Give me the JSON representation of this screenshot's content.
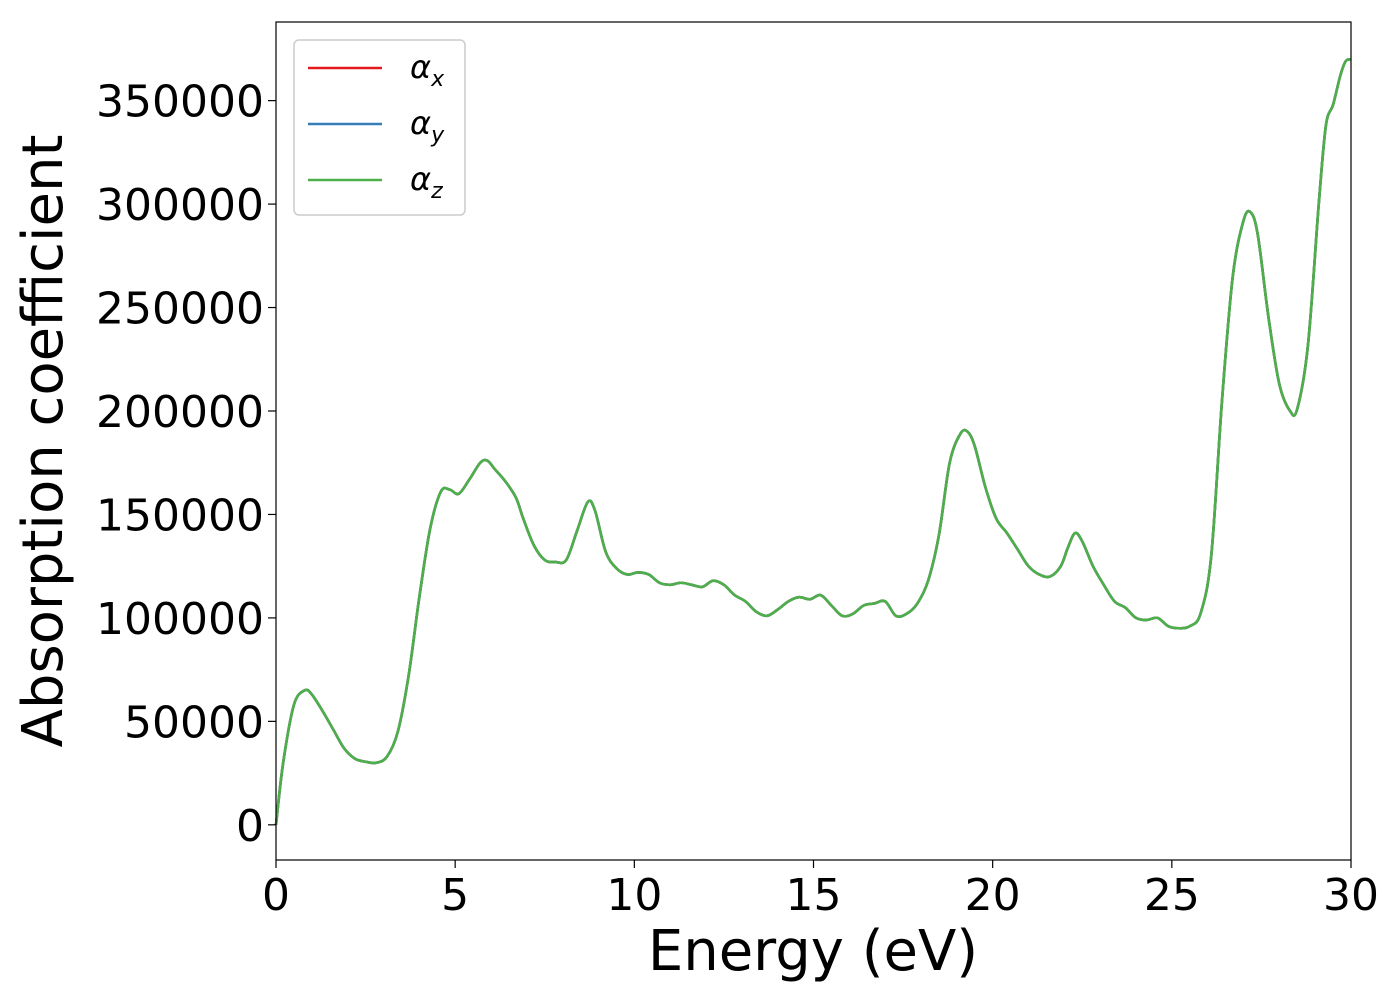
{
  "chart_data": {
    "type": "line",
    "xlabel": "Energy (eV)",
    "ylabel": "Absorption coefficient",
    "xlim": [
      0,
      30
    ],
    "ylim": [
      -17000,
      388000
    ],
    "xticks": [
      0,
      5,
      10,
      15,
      20,
      25,
      30
    ],
    "yticks": [
      0,
      50000,
      100000,
      150000,
      200000,
      250000,
      300000,
      350000
    ],
    "grid": false,
    "legend_position": "top-left",
    "x": [
      0,
      0.2,
      0.5,
      0.8,
      1.0,
      1.3,
      1.6,
      1.9,
      2.2,
      2.5,
      2.8,
      3.1,
      3.4,
      3.7,
      4.0,
      4.3,
      4.6,
      4.85,
      5.1,
      5.4,
      5.7,
      5.9,
      6.1,
      6.4,
      6.7,
      6.9,
      7.2,
      7.5,
      7.8,
      8.1,
      8.4,
      8.7,
      8.9,
      9.2,
      9.5,
      9.8,
      10.1,
      10.4,
      10.7,
      11.0,
      11.3,
      11.6,
      11.9,
      12.2,
      12.5,
      12.8,
      13.1,
      13.4,
      13.7,
      14.0,
      14.3,
      14.6,
      14.9,
      15.2,
      15.5,
      15.8,
      16.1,
      16.4,
      16.7,
      17.0,
      17.3,
      17.6,
      17.9,
      18.2,
      18.5,
      18.8,
      19.1,
      19.3,
      19.5,
      19.8,
      20.1,
      20.4,
      20.7,
      21.0,
      21.3,
      21.6,
      21.9,
      22.1,
      22.3,
      22.5,
      22.8,
      23.1,
      23.4,
      23.7,
      24.0,
      24.3,
      24.6,
      24.9,
      25.2,
      25.5,
      25.8,
      26.1,
      26.4,
      26.7,
      27.0,
      27.2,
      27.4,
      27.7,
      28.0,
      28.3,
      28.5,
      28.8,
      29.1,
      29.3,
      29.5,
      29.7,
      29.85,
      30.0
    ],
    "series": [
      {
        "name": "α_x",
        "symbol": "α",
        "subscript": "x",
        "color": "#e41a1c",
        "values": [
          0,
          30000,
          58000,
          65000,
          63000,
          55000,
          46000,
          37000,
          32000,
          30500,
          30000,
          33000,
          45000,
          72000,
          110000,
          143000,
          161000,
          162000,
          160000,
          167000,
          175000,
          176000,
          172000,
          166000,
          158000,
          148000,
          135000,
          128000,
          127000,
          128000,
          142000,
          156000,
          152000,
          132000,
          124000,
          121000,
          122000,
          121000,
          117000,
          116000,
          117000,
          116000,
          115000,
          118000,
          116000,
          111000,
          108000,
          103000,
          101000,
          104000,
          108000,
          110000,
          109000,
          111000,
          106000,
          101000,
          102000,
          106000,
          107000,
          108000,
          101000,
          102000,
          107000,
          118000,
          140000,
          175000,
          189000,
          190000,
          183000,
          163000,
          148000,
          141000,
          133000,
          125000,
          121000,
          120000,
          125000,
          134000,
          141000,
          137000,
          125000,
          116000,
          108000,
          105000,
          100000,
          99000,
          100000,
          96000,
          95000,
          96000,
          102000,
          130000,
          205000,
          265000,
          292000,
          296000,
          285000,
          245000,
          213000,
          200000,
          201000,
          232000,
          300000,
          338000,
          348000,
          362000,
          369000,
          370000
        ]
      },
      {
        "name": "α_y",
        "symbol": "α",
        "subscript": "y",
        "color": "#377eb8",
        "values": [
          0,
          30000,
          58000,
          65000,
          63000,
          55000,
          46000,
          37000,
          32000,
          30500,
          30000,
          33000,
          45000,
          72000,
          110000,
          143000,
          161000,
          162000,
          160000,
          167000,
          175000,
          176000,
          172000,
          166000,
          158000,
          148000,
          135000,
          128000,
          127000,
          128000,
          142000,
          156000,
          152000,
          132000,
          124000,
          121000,
          122000,
          121000,
          117000,
          116000,
          117000,
          116000,
          115000,
          118000,
          116000,
          111000,
          108000,
          103000,
          101000,
          104000,
          108000,
          110000,
          109000,
          111000,
          106000,
          101000,
          102000,
          106000,
          107000,
          108000,
          101000,
          102000,
          107000,
          118000,
          140000,
          175000,
          189000,
          190000,
          183000,
          163000,
          148000,
          141000,
          133000,
          125000,
          121000,
          120000,
          125000,
          134000,
          141000,
          137000,
          125000,
          116000,
          108000,
          105000,
          100000,
          99000,
          100000,
          96000,
          95000,
          96000,
          102000,
          130000,
          205000,
          265000,
          292000,
          296000,
          285000,
          245000,
          213000,
          200000,
          201000,
          232000,
          300000,
          338000,
          348000,
          362000,
          369000,
          370000
        ]
      },
      {
        "name": "α_z",
        "symbol": "α",
        "subscript": "z",
        "color": "#4daf4a",
        "values": [
          0,
          30000,
          58000,
          65000,
          63000,
          55000,
          46000,
          37000,
          32000,
          30500,
          30000,
          33000,
          45000,
          72000,
          110000,
          143000,
          161000,
          162000,
          160000,
          167000,
          175000,
          176000,
          172000,
          166000,
          158000,
          148000,
          135000,
          128000,
          127000,
          128000,
          142000,
          156000,
          152000,
          132000,
          124000,
          121000,
          122000,
          121000,
          117000,
          116000,
          117000,
          116000,
          115000,
          118000,
          116000,
          111000,
          108000,
          103000,
          101000,
          104000,
          108000,
          110000,
          109000,
          111000,
          106000,
          101000,
          102000,
          106000,
          107000,
          108000,
          101000,
          102000,
          107000,
          118000,
          140000,
          175000,
          189000,
          190000,
          183000,
          163000,
          148000,
          141000,
          133000,
          125000,
          121000,
          120000,
          125000,
          134000,
          141000,
          137000,
          125000,
          116000,
          108000,
          105000,
          100000,
          99000,
          100000,
          96000,
          95000,
          96000,
          102000,
          130000,
          205000,
          265000,
          292000,
          296000,
          285000,
          245000,
          213000,
          200000,
          201000,
          232000,
          300000,
          338000,
          348000,
          362000,
          369000,
          370000
        ]
      }
    ]
  }
}
